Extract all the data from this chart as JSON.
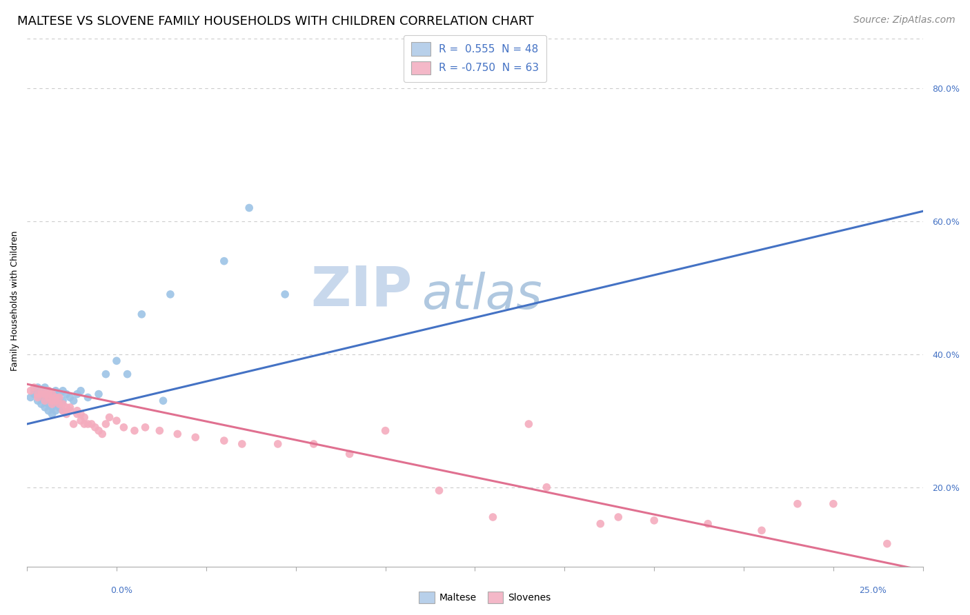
{
  "title": "MALTESE VS SLOVENE FAMILY HOUSEHOLDS WITH CHILDREN CORRELATION CHART",
  "source": "Source: ZipAtlas.com",
  "ylabel": "Family Households with Children",
  "y_tick_values": [
    0.2,
    0.4,
    0.6,
    0.8
  ],
  "xlim": [
    0.0,
    0.25
  ],
  "ylim": [
    0.08,
    0.88
  ],
  "legend_entries": [
    {
      "label": "R =  0.555  N = 48",
      "color": "#b8d0ea"
    },
    {
      "label": "R = -0.750  N = 63",
      "color": "#f4b8c8"
    }
  ],
  "legend_bottom": [
    "Maltese",
    "Slovenes"
  ],
  "legend_bottom_colors": [
    "#b8d0ea",
    "#f4b8c8"
  ],
  "watermark_zip": "ZIP",
  "watermark_atlas": "atlas",
  "watermark_color_zip": "#c5d5e8",
  "watermark_color_atlas": "#b8cfe0",
  "blue_line_color": "#4472c4",
  "pink_line_color": "#e07090",
  "blue_dot_color": "#9dc3e6",
  "pink_dot_color": "#f4acbe",
  "maltese_x": [
    0.001,
    0.002,
    0.002,
    0.003,
    0.003,
    0.003,
    0.004,
    0.004,
    0.004,
    0.004,
    0.005,
    0.005,
    0.005,
    0.005,
    0.006,
    0.006,
    0.006,
    0.006,
    0.007,
    0.007,
    0.007,
    0.007,
    0.008,
    0.008,
    0.008,
    0.008,
    0.009,
    0.009,
    0.009,
    0.01,
    0.01,
    0.01,
    0.011,
    0.012,
    0.013,
    0.014,
    0.015,
    0.017,
    0.02,
    0.022,
    0.025,
    0.028,
    0.032,
    0.038,
    0.04,
    0.055,
    0.062,
    0.072
  ],
  "maltese_y": [
    0.335,
    0.34,
    0.345,
    0.33,
    0.34,
    0.35,
    0.325,
    0.335,
    0.34,
    0.345,
    0.32,
    0.33,
    0.34,
    0.35,
    0.315,
    0.325,
    0.335,
    0.345,
    0.31,
    0.32,
    0.33,
    0.34,
    0.315,
    0.325,
    0.335,
    0.345,
    0.32,
    0.33,
    0.34,
    0.315,
    0.33,
    0.345,
    0.34,
    0.335,
    0.33,
    0.34,
    0.345,
    0.335,
    0.34,
    0.37,
    0.39,
    0.37,
    0.46,
    0.33,
    0.49,
    0.54,
    0.62,
    0.49
  ],
  "slovene_x": [
    0.001,
    0.002,
    0.003,
    0.003,
    0.004,
    0.004,
    0.005,
    0.005,
    0.006,
    0.006,
    0.006,
    0.007,
    0.007,
    0.007,
    0.008,
    0.008,
    0.009,
    0.009,
    0.01,
    0.01,
    0.011,
    0.011,
    0.012,
    0.012,
    0.013,
    0.014,
    0.014,
    0.015,
    0.015,
    0.016,
    0.016,
    0.017,
    0.018,
    0.019,
    0.02,
    0.021,
    0.022,
    0.023,
    0.025,
    0.027,
    0.03,
    0.033,
    0.037,
    0.042,
    0.047,
    0.055,
    0.06,
    0.07,
    0.08,
    0.09,
    0.1,
    0.115,
    0.13,
    0.145,
    0.16,
    0.175,
    0.19,
    0.205,
    0.215,
    0.225,
    0.24,
    0.14,
    0.165
  ],
  "slovene_y": [
    0.345,
    0.35,
    0.335,
    0.34,
    0.34,
    0.345,
    0.33,
    0.34,
    0.335,
    0.34,
    0.345,
    0.325,
    0.33,
    0.34,
    0.33,
    0.335,
    0.325,
    0.335,
    0.315,
    0.325,
    0.31,
    0.32,
    0.315,
    0.32,
    0.295,
    0.31,
    0.315,
    0.3,
    0.31,
    0.295,
    0.305,
    0.295,
    0.295,
    0.29,
    0.285,
    0.28,
    0.295,
    0.305,
    0.3,
    0.29,
    0.285,
    0.29,
    0.285,
    0.28,
    0.275,
    0.27,
    0.265,
    0.265,
    0.265,
    0.25,
    0.285,
    0.195,
    0.155,
    0.2,
    0.145,
    0.15,
    0.145,
    0.135,
    0.175,
    0.175,
    0.115,
    0.295,
    0.155
  ],
  "blue_trendline_x": [
    0.0,
    0.25
  ],
  "blue_trendline_y": [
    0.295,
    0.615
  ],
  "pink_trendline_x": [
    0.0,
    0.25
  ],
  "pink_trendline_y": [
    0.355,
    0.075
  ],
  "grid_color": "#cccccc",
  "background_color": "#ffffff",
  "axis_color": "#4472c4",
  "title_fontsize": 13,
  "source_fontsize": 10,
  "label_fontsize": 9,
  "tick_fontsize": 9,
  "legend_fontsize": 11
}
